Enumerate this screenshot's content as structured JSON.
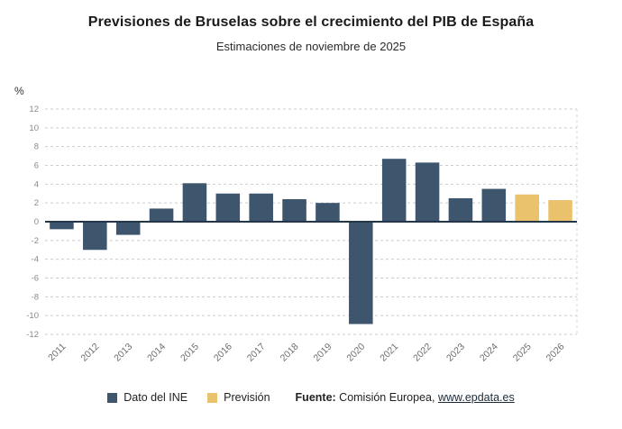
{
  "header": {
    "title": "Previsiones de Bruselas sobre el crecimiento del PIB de España",
    "subtitle": "Estimaciones de noviembre de 2025"
  },
  "chart_data": {
    "type": "bar",
    "title": "Previsiones de Bruselas sobre el crecimiento del PIB de España",
    "subtitle": "Estimaciones de noviembre de 2025",
    "ylabel": "%",
    "xlabel": "",
    "ylim": [
      -12,
      12
    ],
    "ytick_step": 2,
    "grid": true,
    "legend_position": "bottom",
    "categories": [
      "2011",
      "2012",
      "2013",
      "2014",
      "2015",
      "2016",
      "2017",
      "2018",
      "2019",
      "2020",
      "2021",
      "2022",
      "2023",
      "2024",
      "2025",
      "2026"
    ],
    "series": [
      {
        "name": "Dato del INE",
        "color": "#3d566e",
        "values": [
          -0.8,
          -3.0,
          -1.4,
          1.4,
          4.1,
          3.0,
          3.0,
          2.4,
          2.0,
          -10.9,
          6.7,
          6.3,
          2.5,
          3.5,
          null,
          null
        ]
      },
      {
        "name": "Previsión",
        "color": "#eac26c",
        "values": [
          null,
          null,
          null,
          null,
          null,
          null,
          null,
          null,
          null,
          null,
          null,
          null,
          null,
          null,
          2.9,
          2.3
        ]
      }
    ],
    "colors": {
      "gridline": "#cccccc",
      "zero_axis": "#24374a",
      "tick_text": "#8a8a8a"
    }
  },
  "footer": {
    "source_label": "Fuente:",
    "source_text": " Comisión Europea, ",
    "source_link": "www.epdata.es"
  }
}
